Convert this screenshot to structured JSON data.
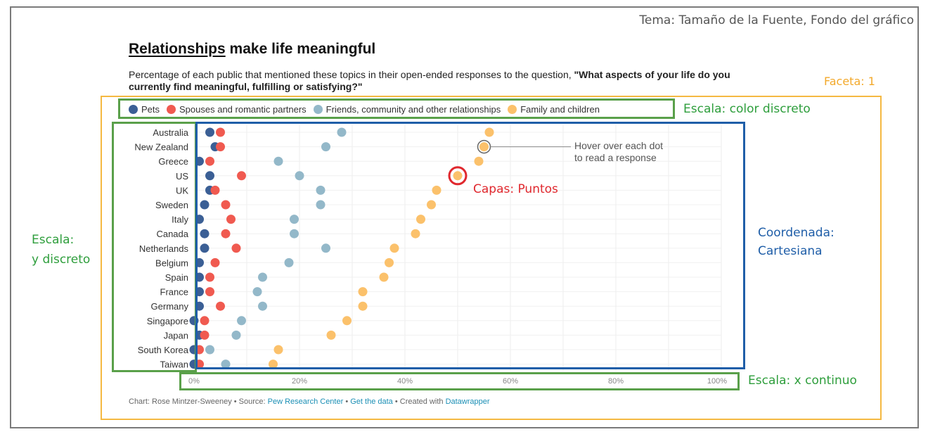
{
  "header": {
    "topic": "Tema: Tamaño de la Fuente, Fondo del gráfico",
    "facet_label": "Faceta: 1"
  },
  "annotations": {
    "color_scale": "Escala: color discreto",
    "y_scale_line1": "Escala:",
    "y_scale_line2": "y discreto",
    "coord_line1": "Coordenada:",
    "coord_line2": "Cartesiana",
    "x_scale": "Escala: x continuo",
    "layers": "Capas: Puntos",
    "hover_line1": "Hover over each dot",
    "hover_line2": "to read a response"
  },
  "footer": {
    "prefix": "Chart: Rose Mintzer-Sweeney • Source: ",
    "source": "Pew Research Center",
    "sep": " • ",
    "get_data": "Get the data",
    "created": " • Created with ",
    "tool": "Datawrapper"
  },
  "colors": {
    "pets": "#3b5f95",
    "spouses": "#f05a50",
    "friends": "#93b8c9",
    "family": "#fbc16b"
  },
  "chart_data": {
    "type": "scatter",
    "title_part1": "Relationships",
    "title_part2": " make life meaningful",
    "subtitle_plain": "Percentage of each public that mentioned these topics in their open-ended responses to the question, ",
    "subtitle_bold": "\"What aspects of your life do you currently find meaningful, fulfilling or satisfying?\"",
    "categories": [
      "Australia",
      "New Zealand",
      "Greece",
      "US",
      "UK",
      "Sweden",
      "Italy",
      "Canada",
      "Netherlands",
      "Belgium",
      "Spain",
      "France",
      "Germany",
      "Singapore",
      "Japan",
      "South Korea",
      "Taiwan"
    ],
    "series": [
      {
        "name": "Pets",
        "values": [
          3,
          4,
          1,
          3,
          3,
          2,
          1,
          2,
          2,
          1,
          1,
          1,
          1,
          0,
          1,
          0,
          0
        ]
      },
      {
        "name": "Spouses and romantic partners",
        "values": [
          5,
          5,
          3,
          9,
          4,
          6,
          7,
          6,
          8,
          4,
          3,
          3,
          5,
          2,
          2,
          1,
          1
        ]
      },
      {
        "name": "Friends, community and other relationships",
        "values": [
          28,
          25,
          16,
          20,
          24,
          24,
          19,
          19,
          25,
          18,
          13,
          12,
          13,
          9,
          8,
          3,
          6
        ]
      },
      {
        "name": "Family and children",
        "values": [
          56,
          55,
          54,
          50,
          46,
          45,
          43,
          42,
          38,
          37,
          36,
          32,
          32,
          29,
          26,
          16,
          15
        ]
      }
    ],
    "xlim": [
      0,
      100
    ],
    "xticks": [
      "0%",
      "20%",
      "40%",
      "60%",
      "80%",
      "100%"
    ],
    "grid": true,
    "legend_position": "top-left"
  }
}
